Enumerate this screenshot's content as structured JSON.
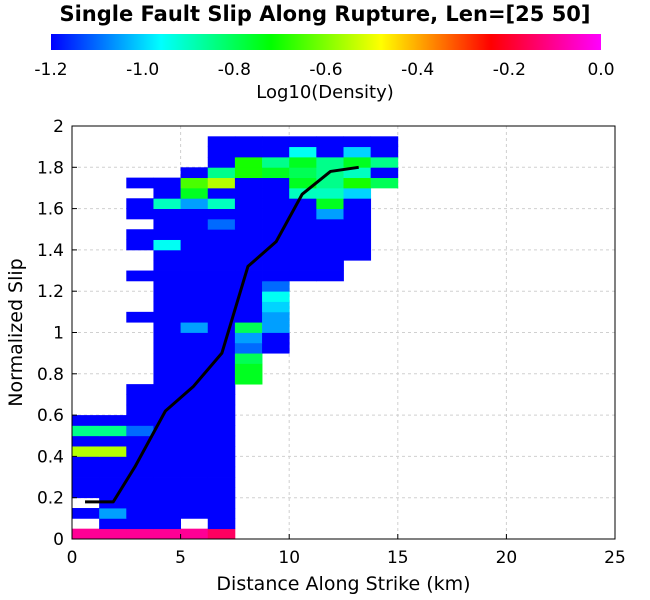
{
  "chart_data": {
    "type": "heatmap",
    "title": "Single Fault Slip Along Rupture, Len=[25 50]",
    "xlabel": "Distance Along Strike (km)",
    "ylabel": "Normalized Slip",
    "xlim": [
      0,
      25
    ],
    "ylim": [
      0,
      2
    ],
    "x_ticks": [
      "0",
      "5",
      "10",
      "15",
      "20",
      "25"
    ],
    "y_ticks": [
      "0",
      "0.2",
      "0.4",
      "0.6",
      "0.8",
      "1",
      "1.2",
      "1.4",
      "1.6",
      "1.8",
      "2"
    ],
    "grid": true,
    "colorbar": {
      "label": "Log10(Density)",
      "range": [
        -1.2,
        0.0
      ],
      "ticks": [
        "-1.2",
        "-1.0",
        "-0.8",
        "-0.6",
        "-0.4",
        "-0.2",
        "0.0"
      ],
      "colormap": [
        "#0000ff",
        "#00ffff",
        "#00ff00",
        "#ffff00",
        "#ff0000",
        "#ff00ff"
      ]
    },
    "heatmap": {
      "bin_width_x": 1.25,
      "bin_height_y": 0.05,
      "cells": [
        [
          0,
          0,
          -0.1
        ],
        [
          1,
          0,
          -0.1
        ],
        [
          2,
          0,
          -0.1
        ],
        [
          3,
          0,
          -0.1
        ],
        [
          4,
          0,
          -0.1
        ],
        [
          5,
          0,
          -0.15
        ],
        [
          1,
          1,
          -1.2
        ],
        [
          2,
          1,
          -1.2
        ],
        [
          3,
          1,
          -1.2
        ],
        [
          5,
          1,
          -1.2
        ],
        [
          0,
          2,
          -1.2
        ],
        [
          1,
          2,
          -1.05
        ],
        [
          2,
          2,
          -1.2
        ],
        [
          3,
          2,
          -1.2
        ],
        [
          4,
          2,
          -1.2
        ],
        [
          5,
          2,
          -1.2
        ],
        [
          1,
          3,
          -1.2
        ],
        [
          2,
          3,
          -1.2
        ],
        [
          3,
          3,
          -1.2
        ],
        [
          4,
          3,
          -1.2
        ],
        [
          5,
          3,
          -1.2
        ],
        [
          0,
          4,
          -1.2
        ],
        [
          1,
          4,
          -1.2
        ],
        [
          2,
          4,
          -1.2
        ],
        [
          3,
          4,
          -1.2
        ],
        [
          4,
          4,
          -1.2
        ],
        [
          5,
          4,
          -1.2
        ],
        [
          0,
          5,
          -1.2
        ],
        [
          1,
          5,
          -1.2
        ],
        [
          2,
          5,
          -1.2
        ],
        [
          3,
          5,
          -1.2
        ],
        [
          4,
          5,
          -1.2
        ],
        [
          5,
          5,
          -1.2
        ],
        [
          0,
          6,
          -1.2
        ],
        [
          1,
          6,
          -1.2
        ],
        [
          2,
          6,
          -1.2
        ],
        [
          3,
          6,
          -1.2
        ],
        [
          4,
          6,
          -1.2
        ],
        [
          5,
          6,
          -1.2
        ],
        [
          0,
          7,
          -1.2
        ],
        [
          1,
          7,
          -1.2
        ],
        [
          2,
          7,
          -1.2
        ],
        [
          3,
          7,
          -1.2
        ],
        [
          4,
          7,
          -1.2
        ],
        [
          5,
          7,
          -1.2
        ],
        [
          0,
          8,
          -0.55
        ],
        [
          1,
          8,
          -0.55
        ],
        [
          2,
          8,
          -1.2
        ],
        [
          3,
          8,
          -1.2
        ],
        [
          4,
          8,
          -1.2
        ],
        [
          5,
          8,
          -1.2
        ],
        [
          0,
          9,
          -1.2
        ],
        [
          1,
          9,
          -1.2
        ],
        [
          2,
          9,
          -1.2
        ],
        [
          3,
          9,
          -1.2
        ],
        [
          4,
          9,
          -1.2
        ],
        [
          5,
          9,
          -1.2
        ],
        [
          0,
          10,
          -0.85
        ],
        [
          1,
          10,
          -0.85
        ],
        [
          2,
          10,
          -1.1
        ],
        [
          3,
          10,
          -1.2
        ],
        [
          4,
          10,
          -1.2
        ],
        [
          5,
          10,
          -1.2
        ],
        [
          0,
          11,
          -1.2
        ],
        [
          1,
          11,
          -1.2
        ],
        [
          2,
          11,
          -1.2
        ],
        [
          3,
          11,
          -1.2
        ],
        [
          4,
          11,
          -1.2
        ],
        [
          5,
          11,
          -1.2
        ],
        [
          2,
          12,
          -1.2
        ],
        [
          3,
          12,
          -1.2
        ],
        [
          4,
          12,
          -1.2
        ],
        [
          5,
          12,
          -1.2
        ],
        [
          2,
          13,
          -1.2
        ],
        [
          3,
          13,
          -1.2
        ],
        [
          4,
          13,
          -1.2
        ],
        [
          5,
          13,
          -1.2
        ],
        [
          2,
          14,
          -1.2
        ],
        [
          3,
          14,
          -1.2
        ],
        [
          4,
          14,
          -1.2
        ],
        [
          5,
          14,
          -1.2
        ],
        [
          3,
          15,
          -1.2
        ],
        [
          4,
          15,
          -1.2
        ],
        [
          5,
          15,
          -1.2
        ],
        [
          6,
          15,
          -0.75
        ],
        [
          3,
          16,
          -1.2
        ],
        [
          4,
          16,
          -1.2
        ],
        [
          5,
          16,
          -1.2
        ],
        [
          6,
          16,
          -0.75
        ],
        [
          3,
          17,
          -1.2
        ],
        [
          4,
          17,
          -1.2
        ],
        [
          5,
          17,
          -1.2
        ],
        [
          6,
          17,
          -0.8
        ],
        [
          3,
          18,
          -1.2
        ],
        [
          4,
          18,
          -1.2
        ],
        [
          5,
          18,
          -1.2
        ],
        [
          6,
          18,
          -1.1
        ],
        [
          7,
          18,
          -1.2
        ],
        [
          3,
          19,
          -1.2
        ],
        [
          4,
          19,
          -1.2
        ],
        [
          5,
          19,
          -1.2
        ],
        [
          6,
          19,
          -1.05
        ],
        [
          7,
          19,
          -1.2
        ],
        [
          3,
          20,
          -1.2
        ],
        [
          4,
          20,
          -1.05
        ],
        [
          5,
          20,
          -1.2
        ],
        [
          6,
          20,
          -0.8
        ],
        [
          7,
          20,
          -1.05
        ],
        [
          2,
          21,
          -1.2
        ],
        [
          3,
          21,
          -1.2
        ],
        [
          4,
          21,
          -1.2
        ],
        [
          5,
          21,
          -1.2
        ],
        [
          6,
          21,
          -1.2
        ],
        [
          7,
          21,
          -1.05
        ],
        [
          3,
          22,
          -1.2
        ],
        [
          4,
          22,
          -1.2
        ],
        [
          5,
          22,
          -1.2
        ],
        [
          6,
          22,
          -1.2
        ],
        [
          7,
          22,
          -1.0
        ],
        [
          3,
          23,
          -1.2
        ],
        [
          4,
          23,
          -1.2
        ],
        [
          5,
          23,
          -1.2
        ],
        [
          6,
          23,
          -1.2
        ],
        [
          7,
          23,
          -0.95
        ],
        [
          3,
          24,
          -1.2
        ],
        [
          4,
          24,
          -1.2
        ],
        [
          5,
          24,
          -1.2
        ],
        [
          6,
          24,
          -1.2
        ],
        [
          7,
          24,
          -1.1
        ],
        [
          2,
          25,
          -1.2
        ],
        [
          3,
          25,
          -1.2
        ],
        [
          4,
          25,
          -1.2
        ],
        [
          5,
          25,
          -1.2
        ],
        [
          6,
          25,
          -1.2
        ],
        [
          7,
          25,
          -1.2
        ],
        [
          8,
          25,
          -1.2
        ],
        [
          9,
          25,
          -1.2
        ],
        [
          3,
          26,
          -1.2
        ],
        [
          4,
          26,
          -1.2
        ],
        [
          5,
          26,
          -1.2
        ],
        [
          6,
          26,
          -1.2
        ],
        [
          7,
          26,
          -1.2
        ],
        [
          8,
          26,
          -1.2
        ],
        [
          9,
          26,
          -1.2
        ],
        [
          3,
          27,
          -1.2
        ],
        [
          4,
          27,
          -1.2
        ],
        [
          5,
          27,
          -1.2
        ],
        [
          6,
          27,
          -1.2
        ],
        [
          7,
          27,
          -1.2
        ],
        [
          8,
          27,
          -1.2
        ],
        [
          9,
          27,
          -1.2
        ],
        [
          10,
          27,
          -1.2
        ],
        [
          2,
          28,
          -1.2
        ],
        [
          3,
          28,
          -0.95
        ],
        [
          4,
          28,
          -1.2
        ],
        [
          5,
          28,
          -1.2
        ],
        [
          6,
          28,
          -1.2
        ],
        [
          7,
          28,
          -1.2
        ],
        [
          8,
          28,
          -1.2
        ],
        [
          9,
          28,
          -1.2
        ],
        [
          10,
          28,
          -1.2
        ],
        [
          2,
          29,
          -1.2
        ],
        [
          3,
          29,
          -1.2
        ],
        [
          4,
          29,
          -1.2
        ],
        [
          5,
          29,
          -1.2
        ],
        [
          6,
          29,
          -1.2
        ],
        [
          7,
          29,
          -1.2
        ],
        [
          8,
          29,
          -1.2
        ],
        [
          9,
          29,
          -1.2
        ],
        [
          10,
          29,
          -1.2
        ],
        [
          3,
          30,
          -1.2
        ],
        [
          4,
          30,
          -1.2
        ],
        [
          5,
          30,
          -1.1
        ],
        [
          6,
          30,
          -1.2
        ],
        [
          7,
          30,
          -1.2
        ],
        [
          8,
          30,
          -1.2
        ],
        [
          9,
          30,
          -1.2
        ],
        [
          10,
          30,
          -1.2
        ],
        [
          2,
          31,
          -1.2
        ],
        [
          3,
          31,
          -1.2
        ],
        [
          4,
          31,
          -1.2
        ],
        [
          5,
          31,
          -1.2
        ],
        [
          6,
          31,
          -1.2
        ],
        [
          7,
          31,
          -1.2
        ],
        [
          8,
          31,
          -1.2
        ],
        [
          9,
          31,
          -1.05
        ],
        [
          10,
          31,
          -1.2
        ],
        [
          2,
          32,
          -1.2
        ],
        [
          3,
          32,
          -0.9
        ],
        [
          4,
          32,
          -1.05
        ],
        [
          5,
          32,
          -0.9
        ],
        [
          6,
          32,
          -1.2
        ],
        [
          7,
          32,
          -1.2
        ],
        [
          8,
          32,
          -1.2
        ],
        [
          9,
          32,
          -0.75
        ],
        [
          10,
          32,
          -1.2
        ],
        [
          3,
          33,
          -1.2
        ],
        [
          4,
          33,
          -0.75
        ],
        [
          5,
          33,
          -1.2
        ],
        [
          6,
          33,
          -1.2
        ],
        [
          7,
          33,
          -1.2
        ],
        [
          8,
          33,
          -0.9
        ],
        [
          9,
          33,
          -0.9
        ],
        [
          10,
          33,
          -1.0
        ],
        [
          2,
          34,
          -1.2
        ],
        [
          3,
          34,
          -1.2
        ],
        [
          4,
          34,
          -0.65
        ],
        [
          5,
          34,
          -0.55
        ],
        [
          6,
          34,
          -1.2
        ],
        [
          7,
          34,
          -1.2
        ],
        [
          8,
          34,
          -0.75
        ],
        [
          9,
          34,
          -0.85
        ],
        [
          10,
          34,
          -0.7
        ],
        [
          11,
          34,
          -0.8
        ],
        [
          4,
          35,
          -1.2
        ],
        [
          5,
          35,
          -0.85
        ],
        [
          6,
          35,
          -0.7
        ],
        [
          7,
          35,
          -0.75
        ],
        [
          8,
          35,
          -0.8
        ],
        [
          9,
          35,
          -0.85
        ],
        [
          10,
          35,
          -0.9
        ],
        [
          11,
          35,
          -1.2
        ],
        [
          5,
          36,
          -1.2
        ],
        [
          6,
          36,
          -0.7
        ],
        [
          7,
          36,
          -0.85
        ],
        [
          8,
          36,
          -0.75
        ],
        [
          9,
          36,
          -0.85
        ],
        [
          10,
          36,
          -0.75
        ],
        [
          11,
          36,
          -0.85
        ],
        [
          5,
          37,
          -1.2
        ],
        [
          6,
          37,
          -1.2
        ],
        [
          7,
          37,
          -1.2
        ],
        [
          8,
          37,
          -0.95
        ],
        [
          9,
          37,
          -1.2
        ],
        [
          10,
          37,
          -1.0
        ],
        [
          11,
          37,
          -1.2
        ],
        [
          5,
          38,
          -1.2
        ],
        [
          6,
          38,
          -1.2
        ],
        [
          7,
          38,
          -1.2
        ],
        [
          8,
          38,
          -1.2
        ],
        [
          9,
          38,
          -1.2
        ],
        [
          10,
          38,
          -1.2
        ],
        [
          11,
          38,
          -1.2
        ]
      ]
    },
    "series": [
      {
        "type": "line",
        "x": [
          0.6,
          1.9,
          2.9,
          4.3,
          5.6,
          6.9,
          8.1,
          9.4,
          10.6,
          11.9,
          13.2
        ],
        "y": [
          0.18,
          0.18,
          0.35,
          0.62,
          0.74,
          0.9,
          1.32,
          1.44,
          1.67,
          1.78,
          1.8
        ]
      }
    ]
  }
}
